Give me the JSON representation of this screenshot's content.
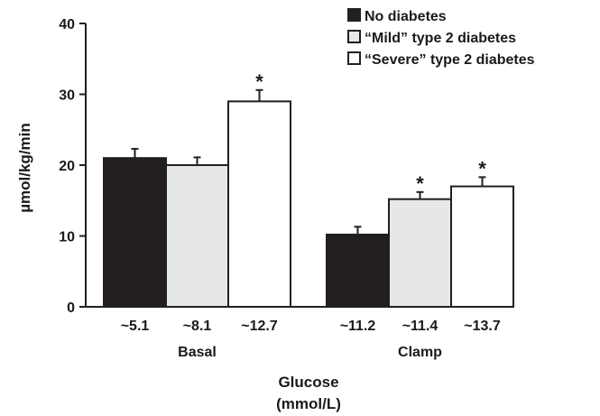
{
  "chart_data": {
    "type": "bar",
    "ylabel": "µmol/kg/min",
    "xlabel_line1": "Glucose",
    "xlabel_line2": "(mmol/L)",
    "ylim": [
      0,
      40
    ],
    "yticks": [
      0,
      10,
      20,
      30,
      40
    ],
    "groups": [
      {
        "name": "Basal",
        "bars": [
          {
            "series": "No diabetes",
            "value": 21.0,
            "error": 1.3,
            "x_label": "~5.1",
            "significant": false
          },
          {
            "series": "“Mild” type 2 diabetes",
            "value": 20.0,
            "error": 1.1,
            "x_label": "~8.1",
            "significant": false
          },
          {
            "series": "“Severe” type 2 diabetes",
            "value": 29.0,
            "error": 1.6,
            "x_label": "~12.7",
            "significant": true
          }
        ]
      },
      {
        "name": "Clamp",
        "bars": [
          {
            "series": "No diabetes",
            "value": 10.2,
            "error": 1.1,
            "x_label": "~11.2",
            "significant": false
          },
          {
            "series": "“Mild” type 2 diabetes",
            "value": 15.2,
            "error": 1.0,
            "x_label": "~11.4",
            "significant": true
          },
          {
            "series": "“Severe” type 2 diabetes",
            "value": 17.0,
            "error": 1.3,
            "x_label": "~13.7",
            "significant": true
          }
        ]
      }
    ],
    "series": [
      {
        "name": "No diabetes",
        "color": "#231f20"
      },
      {
        "name": "“Mild” type 2 diabetes",
        "color": "#e6e7e8"
      },
      {
        "name": "“Severe” type 2 diabetes",
        "color": "#ffffff"
      }
    ],
    "significance_marker": "*",
    "legend_position": "top-right"
  }
}
